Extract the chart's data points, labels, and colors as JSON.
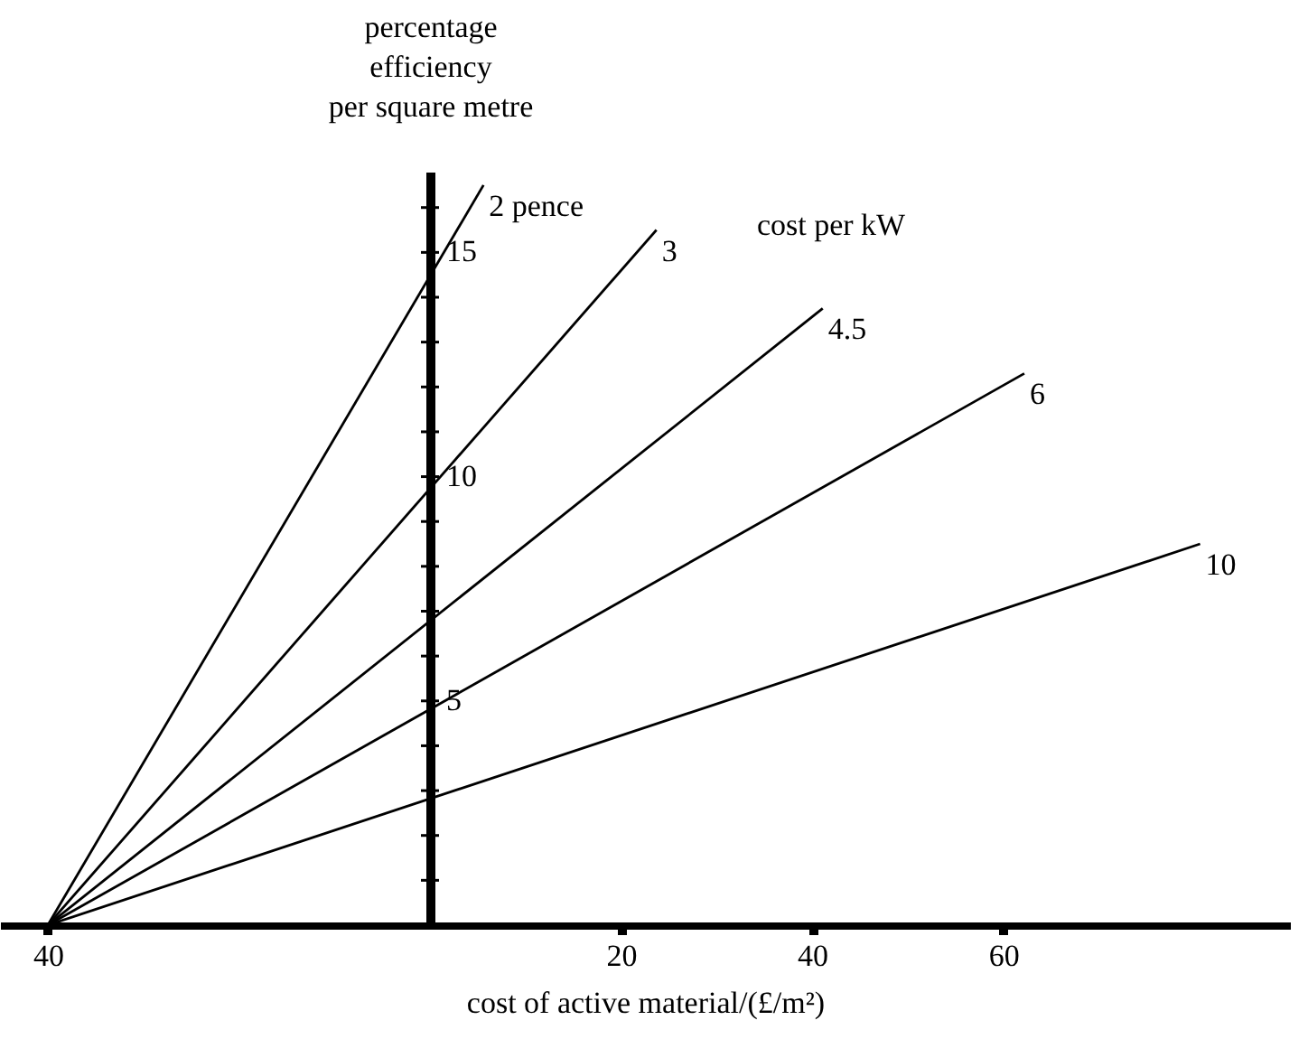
{
  "chart_data": {
    "type": "line",
    "ylabel": "percentage\nefficiency\nper square metre",
    "xlabel": "cost of active material/(£/m²)",
    "annotations": [
      "cost per kW"
    ],
    "xlim": [
      -45,
      90
    ],
    "ylim": [
      0,
      16.8
    ],
    "xticks": [
      {
        "value": -40,
        "label": "40"
      },
      20,
      40,
      60
    ],
    "yticks": [
      {
        "value": 1,
        "label": null
      },
      {
        "value": 2,
        "label": null
      },
      {
        "value": 3,
        "label": null
      },
      {
        "value": 4,
        "label": null
      },
      5,
      {
        "value": 6,
        "label": null
      },
      {
        "value": 7,
        "label": null
      },
      {
        "value": 8,
        "label": null
      },
      {
        "value": 9,
        "label": null
      },
      10,
      {
        "value": 11,
        "label": null
      },
      {
        "value": 12,
        "label": null
      },
      {
        "value": 13,
        "label": null
      },
      {
        "value": 14,
        "label": null
      },
      15,
      {
        "value": 16,
        "label": null
      }
    ],
    "grid": false,
    "legend": false,
    "marker": "none",
    "line_style": "solid",
    "series": [
      {
        "name": "2 pence",
        "color": "#000000",
        "x": [
          -40,
          5.6
        ],
        "values": [
          0,
          16.5
        ]
      },
      {
        "name": "3",
        "color": "#000000",
        "x": [
          -40,
          23.7
        ],
        "values": [
          0,
          15.5
        ]
      },
      {
        "name": "4.5",
        "color": "#000000",
        "x": [
          -40,
          41.1
        ],
        "values": [
          0,
          13.75
        ]
      },
      {
        "name": "6",
        "color": "#000000",
        "x": [
          -40,
          62.2
        ],
        "values": [
          0,
          12.3
        ]
      },
      {
        "name": "10",
        "color": "#000000",
        "x": [
          -40,
          80.6
        ],
        "values": [
          0,
          8.5
        ]
      }
    ]
  }
}
